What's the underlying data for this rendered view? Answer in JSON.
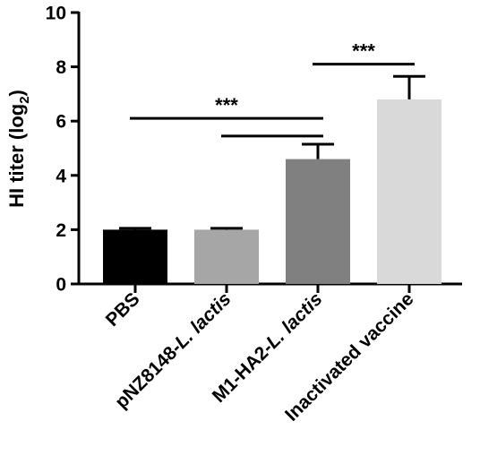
{
  "chart_data": {
    "type": "bar",
    "categories": [
      {
        "name": "PBS",
        "prefix": "PBS",
        "italic": ""
      },
      {
        "name": "pNZ8148-L. lactis",
        "prefix": "pNZ8148-",
        "italic": "L. lactis"
      },
      {
        "name": "M1-HA2-L. lactis",
        "prefix": "M1-HA2-",
        "italic": "L. lactis"
      },
      {
        "name": "Inactivated vaccine",
        "prefix": "Inactivated vaccine",
        "italic": ""
      }
    ],
    "values": [
      2.0,
      2.0,
      4.6,
      6.8
    ],
    "errors": [
      0.05,
      0.05,
      0.55,
      0.85
    ],
    "colors": [
      "#000000",
      "#a6a6a6",
      "#808080",
      "#d9d9d9"
    ],
    "ylabel": {
      "main": "HI titer (log",
      "sub": "2",
      "close": ")"
    },
    "ylim": [
      0,
      10
    ],
    "yticks": [
      "0",
      "2",
      "4",
      "6",
      "8",
      "10"
    ],
    "grid": false,
    "significance": [
      {
        "from": 0,
        "to": 2,
        "label": "***",
        "y": 6.1
      },
      {
        "from": 1,
        "to": 2,
        "label": "",
        "y": 5.45
      },
      {
        "from": 2,
        "to": 3,
        "label": "***",
        "y": 8.1
      }
    ]
  }
}
